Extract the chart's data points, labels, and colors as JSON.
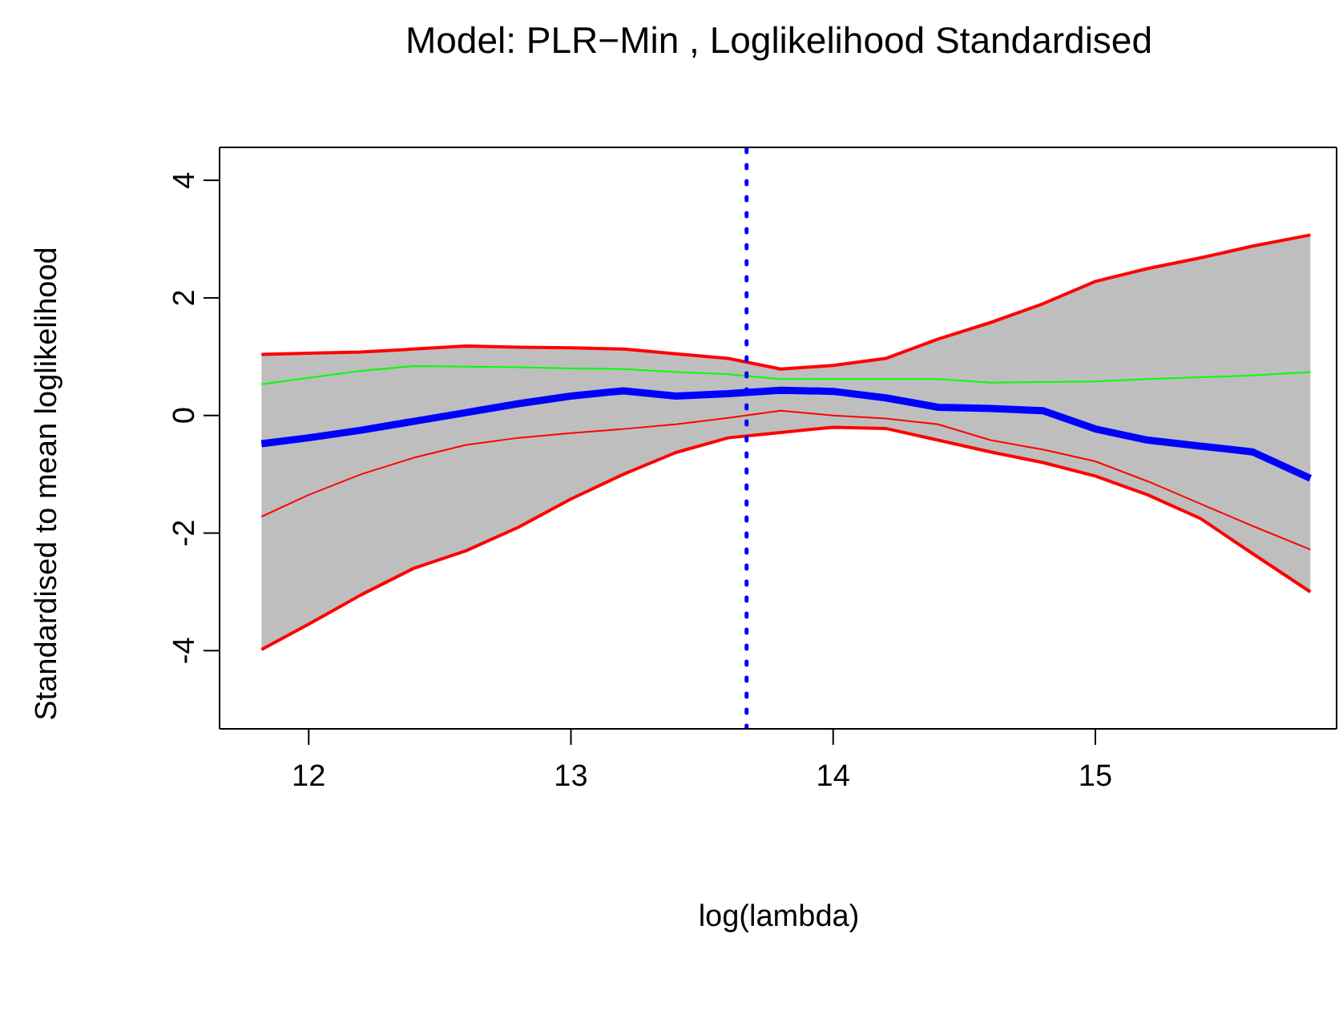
{
  "chart_data": {
    "type": "line",
    "title": "Model: PLR−Min , Loglikelihood Standardised",
    "xlabel": "log(lambda)",
    "ylabel": "Standardised to mean loglikelihood",
    "x": [
      11.82,
      12.0,
      12.2,
      12.4,
      12.6,
      12.8,
      13.0,
      13.2,
      13.4,
      13.6,
      13.8,
      14.0,
      14.2,
      14.4,
      14.6,
      14.8,
      15.0,
      15.2,
      15.4,
      15.6,
      15.82
    ],
    "series": [
      {
        "color": "#0000ff",
        "values": [
          -0.48,
          -0.38,
          -0.25,
          -0.1,
          0.05,
          0.2,
          0.33,
          0.42,
          0.33,
          0.37,
          0.43,
          0.41,
          0.3,
          0.14,
          0.12,
          0.08,
          -0.23,
          -0.42,
          -0.52,
          -0.62,
          -1.07
        ],
        "lower": [
          -3.98,
          -3.55,
          -3.05,
          -2.6,
          -2.3,
          -1.9,
          -1.42,
          -1.0,
          -0.63,
          -0.38,
          -0.29,
          -0.2,
          -0.22,
          -0.42,
          -0.62,
          -0.8,
          -1.03,
          -1.35,
          -1.75,
          -2.35,
          -3.0
        ],
        "upper": [
          1.04,
          1.06,
          1.08,
          1.13,
          1.18,
          1.16,
          1.15,
          1.13,
          1.05,
          0.97,
          0.79,
          0.85,
          0.97,
          1.3,
          1.58,
          1.9,
          2.28,
          2.5,
          2.68,
          2.88,
          3.07
        ]
      },
      {
        "color": "#ff0000",
        "values": [
          1.04,
          1.06,
          1.08,
          1.13,
          1.18,
          1.16,
          1.15,
          1.13,
          1.05,
          0.97,
          0.79,
          0.85,
          0.97,
          1.3,
          1.58,
          1.9,
          2.28,
          2.5,
          2.68,
          2.88,
          3.07
        ]
      },
      {
        "color": "#ff0000",
        "values": [
          -3.98,
          -3.55,
          -3.05,
          -2.6,
          -2.3,
          -1.9,
          -1.42,
          -1.0,
          -0.63,
          -0.38,
          -0.29,
          -0.2,
          -0.22,
          -0.42,
          -0.62,
          -0.8,
          -1.03,
          -1.35,
          -1.75,
          -2.35,
          -3.0
        ]
      },
      {
        "color": "#ff0000",
        "values": [
          -1.72,
          -1.35,
          -1.0,
          -0.72,
          -0.5,
          -0.38,
          -0.3,
          -0.23,
          -0.15,
          -0.04,
          0.08,
          0.0,
          -0.05,
          -0.15,
          -0.42,
          -0.58,
          -0.78,
          -1.12,
          -1.5,
          -1.88,
          -2.28
        ]
      },
      {
        "color": "#00ff00",
        "values": [
          0.53,
          0.64,
          0.76,
          0.84,
          0.83,
          0.82,
          0.8,
          0.79,
          0.74,
          0.7,
          0.62,
          0.62,
          0.62,
          0.62,
          0.56,
          0.57,
          0.58,
          0.62,
          0.65,
          0.68,
          0.74
        ]
      }
    ],
    "xlim": [
      11.66,
      15.92
    ],
    "xticks": [
      12,
      13,
      14,
      15
    ],
    "ylim": [
      -5.33,
      4.56
    ],
    "yticks": [
      -4,
      -2,
      0,
      2,
      4
    ],
    "ref_lines": [
      {
        "axis": "x",
        "value": 13.67,
        "color": "#0000ff",
        "line_style": "dotted"
      }
    ],
    "grid": false,
    "legend": false,
    "marker": "none",
    "line_style": "solid"
  }
}
